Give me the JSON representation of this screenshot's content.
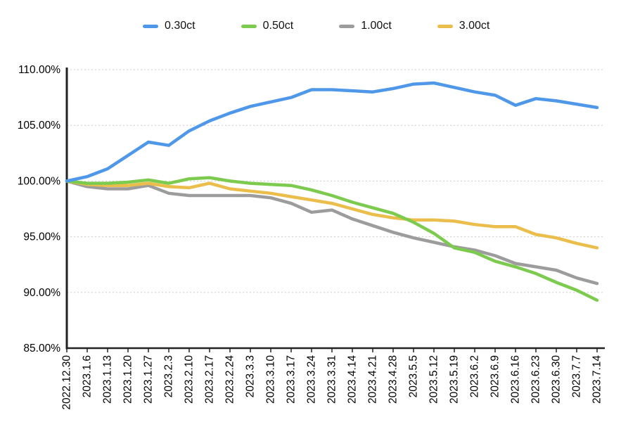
{
  "chart_data": {
    "type": "line",
    "title": "",
    "legend_position": "top",
    "grid": {
      "horizontal": true,
      "vertical": false,
      "style": "dotted",
      "color": "#cccccc"
    },
    "axis_color": "#222222",
    "x_labels": [
      "2022.12.30",
      "2023.1.6",
      "2023.1.13",
      "2023.1.20",
      "2023.1.27",
      "2023.2.3",
      "2023.2.10",
      "2023.2.17",
      "2023.2.24",
      "2023.3.3",
      "2023.3.10",
      "2023.3.17",
      "2023.3.24",
      "2023.3.31",
      "2023.4.14",
      "2023.4.21",
      "2023.4.28",
      "2023.5.5",
      "2023.5.12",
      "2023.5.19",
      "2023.6.2",
      "2023.6.9",
      "2023.6.16",
      "2023.6.23",
      "2023.6.30",
      "2023.7.7",
      "2023.7.14"
    ],
    "y_axis": {
      "min": 85,
      "max": 110,
      "tick_step": 5,
      "tick_labels": [
        "85.00%",
        "90.00%",
        "95.00%",
        "100.00%",
        "105.00%",
        "110.00%"
      ]
    },
    "series": [
      {
        "name": "0.30ct",
        "color": "#4E97E9",
        "values": [
          100.0,
          100.4,
          101.1,
          102.3,
          103.5,
          103.2,
          104.5,
          105.4,
          106.1,
          106.7,
          107.1,
          107.5,
          108.2,
          108.2,
          108.1,
          108.0,
          108.3,
          108.7,
          108.8,
          108.4,
          108.0,
          107.7,
          106.8,
          107.4,
          107.2,
          106.9,
          106.6
        ]
      },
      {
        "name": "0.50ct",
        "color": "#7CCB4E",
        "values": [
          100.0,
          99.8,
          99.8,
          99.9,
          100.1,
          99.8,
          100.2,
          100.3,
          100.0,
          99.8,
          99.7,
          99.6,
          99.2,
          98.7,
          98.1,
          97.6,
          97.1,
          96.3,
          95.3,
          94.0,
          93.6,
          92.8,
          92.3,
          91.7,
          90.9,
          90.2,
          89.3
        ]
      },
      {
        "name": "1.00ct",
        "color": "#9C9C9C",
        "values": [
          100.0,
          99.5,
          99.3,
          99.3,
          99.6,
          98.9,
          98.7,
          98.7,
          98.7,
          98.7,
          98.5,
          98.0,
          97.2,
          97.4,
          96.6,
          96.0,
          95.4,
          94.9,
          94.5,
          94.1,
          93.8,
          93.3,
          92.6,
          92.3,
          92.0,
          91.3,
          90.8
        ]
      },
      {
        "name": "3.00ct",
        "color": "#EBBE4B",
        "values": [
          100.0,
          99.7,
          99.6,
          99.6,
          99.8,
          99.5,
          99.4,
          99.8,
          99.3,
          99.1,
          98.9,
          98.6,
          98.3,
          98.0,
          97.5,
          97.0,
          96.7,
          96.5,
          96.5,
          96.4,
          96.1,
          95.9,
          95.9,
          95.2,
          94.9,
          94.4,
          94.0
        ]
      }
    ]
  }
}
